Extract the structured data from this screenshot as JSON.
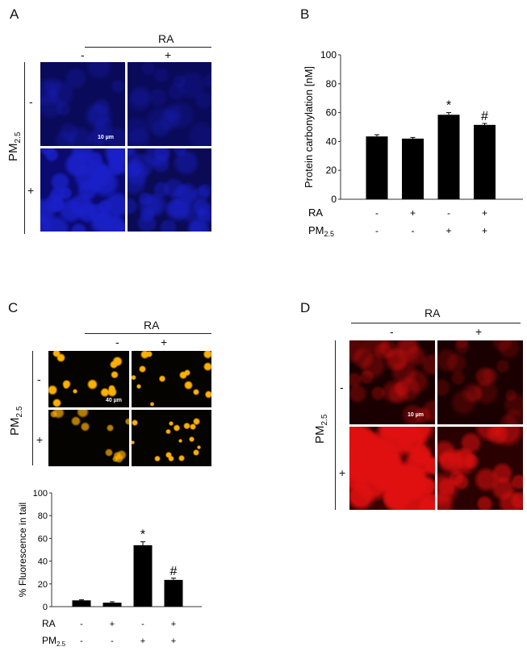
{
  "panels": {
    "a": {
      "letter": "A",
      "factor": "RA",
      "minus": "-",
      "plus": "+",
      "pm": "PM",
      "pm_sub": "2.5",
      "scale_bar": "10 µm",
      "image_color": "#1a20c8"
    },
    "b": {
      "letter": "B"
    },
    "c": {
      "letter": "C",
      "factor": "RA",
      "minus": "-",
      "plus": "+",
      "pm": "PM",
      "pm_sub": "2.5",
      "scale_bar": "40 µm",
      "image_color": "#ffb000"
    },
    "d": {
      "letter": "D",
      "factor": "RA",
      "minus": "-",
      "plus": "+",
      "pm": "PM",
      "pm_sub": "2.5",
      "scale_bar": "10 µm",
      "image_color": "#e01010"
    }
  },
  "chart_data": [
    {
      "type": "bar",
      "panel": "B",
      "ylabel": "Protein carbonylation [nM]",
      "ylim": [
        0,
        100
      ],
      "yticks": [
        "0",
        "20",
        "40",
        "60",
        "80",
        "100"
      ],
      "row_labels": [
        "RA",
        "PM2.5"
      ],
      "ra": [
        "-",
        "+",
        "-",
        "+"
      ],
      "pm": [
        "-",
        "-",
        "+",
        "+"
      ],
      "values": [
        43.5,
        42,
        58.5,
        51.5
      ],
      "errors": [
        1.2,
        0.8,
        1.5,
        1
      ],
      "annotations": [
        "",
        "",
        "*",
        "#"
      ],
      "bar_color": "#000000",
      "grid": false
    },
    {
      "type": "bar",
      "panel": "C",
      "ylabel": "% Fluorescence in tail",
      "ylim": [
        0,
        100
      ],
      "yticks": [
        "0",
        "20",
        "40",
        "60",
        "80",
        "100"
      ],
      "row_labels": [
        "RA",
        "PM2.5"
      ],
      "ra": [
        "-",
        "+",
        "-",
        "+"
      ],
      "pm": [
        "-",
        "-",
        "+",
        "+"
      ],
      "values": [
        5.5,
        3.5,
        54,
        23.5
      ],
      "errors": [
        0.5,
        0.8,
        3,
        1.5
      ],
      "annotations": [
        "",
        "",
        "*",
        "#"
      ],
      "bar_color": "#000000",
      "grid": false
    }
  ]
}
